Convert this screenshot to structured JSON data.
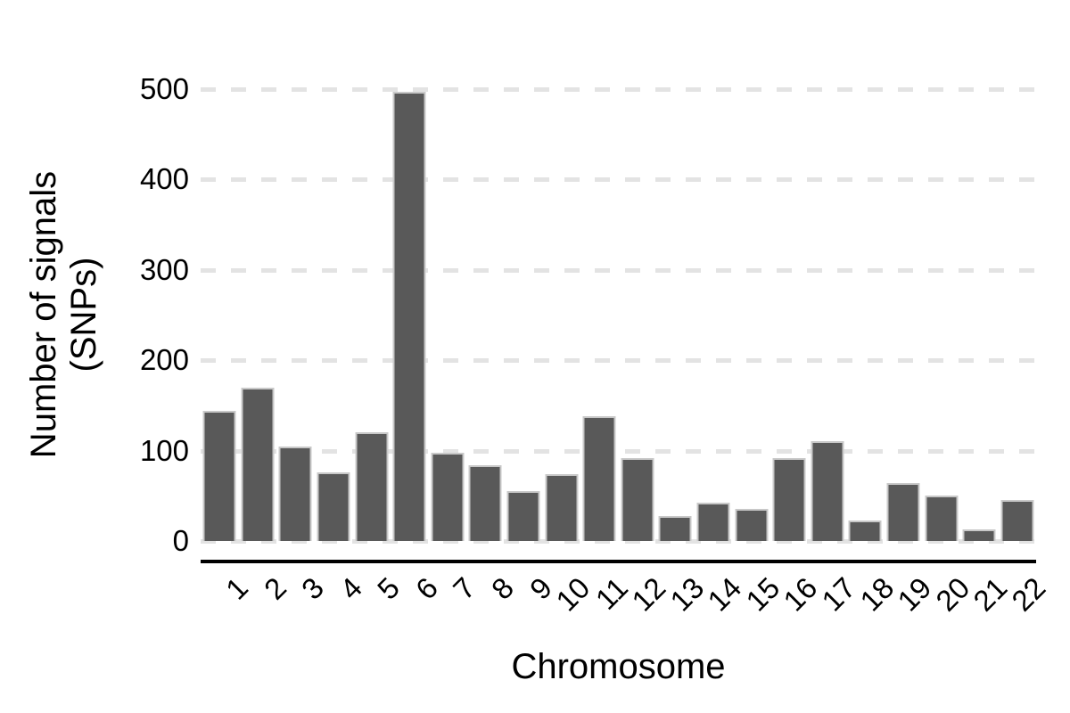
{
  "chart_data": {
    "type": "bar",
    "title": "",
    "xlabel": "Chromosome",
    "ylabel_lines": [
      "Number of signals",
      "(SNPs)"
    ],
    "categories": [
      "1",
      "2",
      "3",
      "4",
      "5",
      "6",
      "7",
      "8",
      "9",
      "10",
      "11",
      "12",
      "13",
      "14",
      "15",
      "16",
      "17",
      "18",
      "19",
      "20",
      "21",
      "22"
    ],
    "values": [
      144,
      170,
      105,
      76,
      120,
      497,
      98,
      84,
      55,
      74,
      138,
      92,
      28,
      42,
      36,
      92,
      110,
      23,
      64,
      50,
      13,
      45
    ],
    "yticks": [
      0,
      100,
      200,
      300,
      400,
      500
    ],
    "ylim": [
      0,
      500
    ],
    "grid": "horizontal dashed",
    "legend": "none",
    "bar_color": "#595959",
    "bar_border_color": "#c8c8c8",
    "gridline_color": "#e3e3e3",
    "axis_line_color": "#000000",
    "background": "#ffffff"
  }
}
